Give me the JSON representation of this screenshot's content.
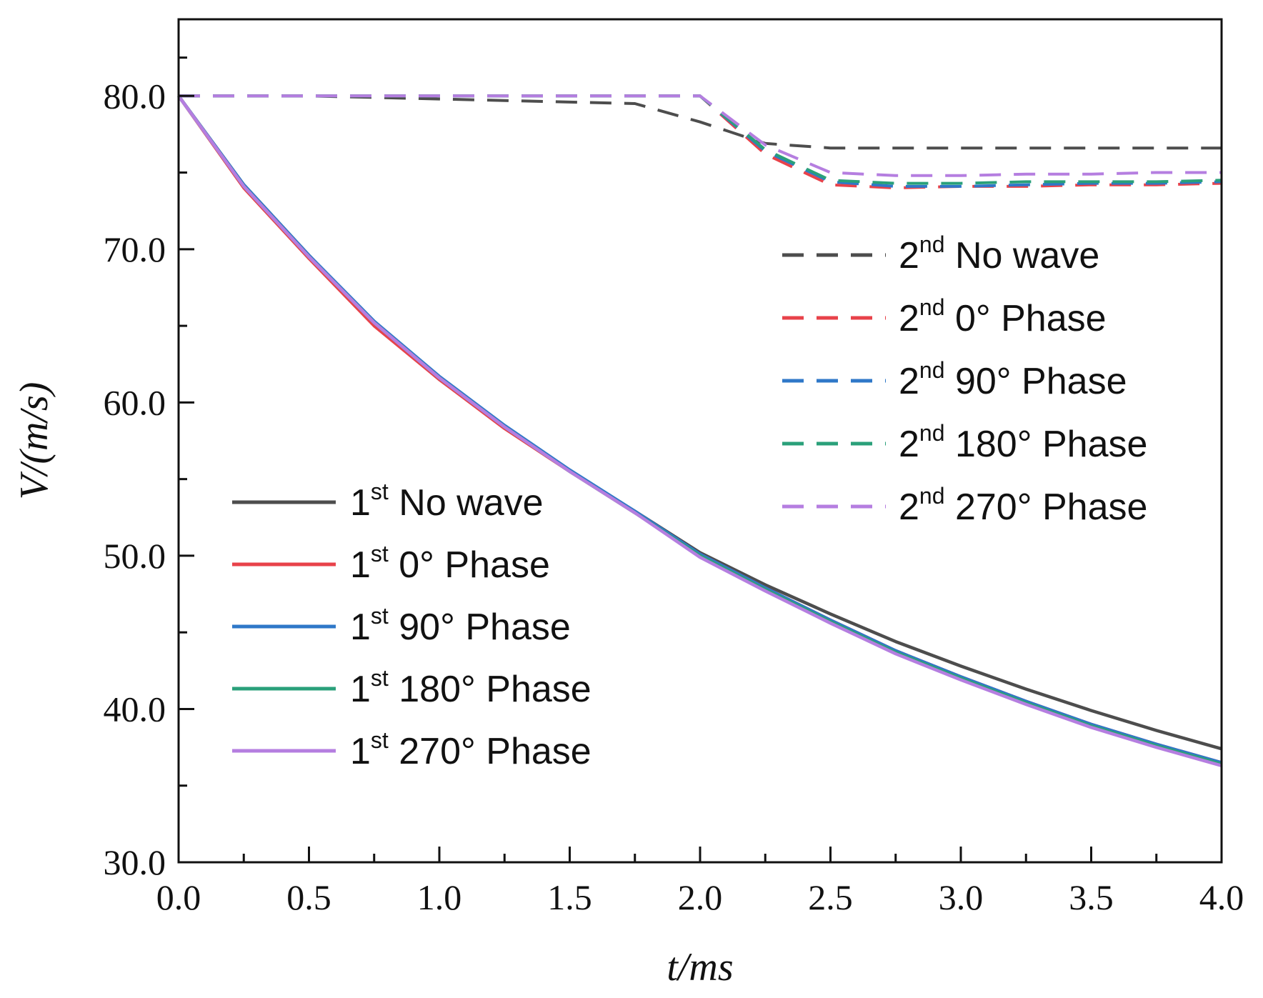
{
  "chart_data": {
    "type": "line",
    "xlabel": "t/ms",
    "ylabel": "V/(m/s)",
    "xlim": [
      0,
      4
    ],
    "ylim": [
      30,
      85
    ],
    "x_ticks": [
      "0.0",
      "0.5",
      "1.0",
      "1.5",
      "2.0",
      "2.5",
      "3.0",
      "3.5",
      "4.0"
    ],
    "y_ticks": [
      "30.0",
      "40.0",
      "50.0",
      "60.0",
      "70.0",
      "80.0"
    ],
    "grid": false,
    "x": [
      0,
      0.25,
      0.5,
      0.75,
      1.0,
      1.25,
      1.5,
      1.75,
      2.0,
      2.25,
      2.5,
      2.75,
      3.0,
      3.25,
      3.5,
      3.75,
      4.0
    ],
    "series": [
      {
        "name": "1st No wave",
        "legend_prefix": "1",
        "legend_sup": "st",
        "legend_label": "No wave",
        "color": "#4d4d4d",
        "dash": "solid",
        "values": [
          80.0,
          74.2,
          69.6,
          65.1,
          61.5,
          58.4,
          55.5,
          52.9,
          50.2,
          48.1,
          46.2,
          44.4,
          42.8,
          41.3,
          39.9,
          38.6,
          37.4
        ]
      },
      {
        "name": "1st 0° Phase",
        "legend_prefix": "1",
        "legend_sup": "st",
        "legend_label": "0° Phase",
        "color": "#e8424a",
        "dash": "solid",
        "values": [
          80.0,
          74.0,
          69.4,
          65.0,
          61.5,
          58.3,
          55.5,
          52.8,
          50.1,
          47.9,
          45.8,
          43.8,
          42.1,
          40.5,
          39.0,
          37.7,
          36.5
        ]
      },
      {
        "name": "1st 90° Phase",
        "legend_prefix": "1",
        "legend_sup": "st",
        "legend_label": "90° Phase",
        "color": "#2f78c8",
        "dash": "solid",
        "values": [
          80.0,
          74.2,
          69.6,
          65.3,
          61.7,
          58.5,
          55.6,
          52.9,
          50.1,
          47.9,
          45.8,
          43.8,
          42.1,
          40.5,
          39.0,
          37.7,
          36.5
        ]
      },
      {
        "name": "1st 180° Phase",
        "legend_prefix": "1",
        "legend_sup": "st",
        "legend_label": "180° Phase",
        "color": "#2aa07a",
        "dash": "solid",
        "values": [
          80.0,
          74.1,
          69.5,
          65.2,
          61.6,
          58.4,
          55.5,
          52.8,
          50.0,
          47.8,
          45.7,
          43.7,
          42.0,
          40.4,
          38.9,
          37.6,
          36.4
        ]
      },
      {
        "name": "1st 270° Phase",
        "legend_prefix": "1",
        "legend_sup": "st",
        "legend_label": "270° Phase",
        "color": "#b57ee0",
        "dash": "solid",
        "values": [
          80.0,
          74.1,
          69.5,
          65.2,
          61.6,
          58.4,
          55.5,
          52.8,
          49.9,
          47.7,
          45.6,
          43.6,
          41.9,
          40.3,
          38.8,
          37.5,
          36.3
        ]
      },
      {
        "name": "2nd No wave",
        "legend_prefix": "2",
        "legend_sup": "nd",
        "legend_label": "No wave",
        "color": "#4d4d4d",
        "dash": "dashed",
        "values": [
          80.0,
          80.0,
          80.0,
          79.9,
          79.8,
          79.7,
          79.6,
          79.5,
          78.3,
          76.9,
          76.6,
          76.6,
          76.6,
          76.6,
          76.6,
          76.6,
          76.6
        ]
      },
      {
        "name": "2nd 0° Phase",
        "legend_prefix": "2",
        "legend_sup": "nd",
        "legend_label": "0° Phase",
        "color": "#e8424a",
        "dash": "dashed",
        "values": [
          80.0,
          80.0,
          80.0,
          80.0,
          80.0,
          80.0,
          80.0,
          80.0,
          80.0,
          76.2,
          74.2,
          74.0,
          74.1,
          74.1,
          74.2,
          74.2,
          74.3
        ]
      },
      {
        "name": "2nd 90° Phase",
        "legend_prefix": "2",
        "legend_sup": "nd",
        "legend_label": "90° Phase",
        "color": "#2f78c8",
        "dash": "dashed",
        "values": [
          80.0,
          80.0,
          80.0,
          80.0,
          80.0,
          80.0,
          80.0,
          80.0,
          80.0,
          76.4,
          74.4,
          74.1,
          74.1,
          74.2,
          74.3,
          74.3,
          74.4
        ]
      },
      {
        "name": "2nd 180° Phase",
        "legend_prefix": "2",
        "legend_sup": "nd",
        "legend_label": "180° Phase",
        "color": "#2aa07a",
        "dash": "dashed",
        "values": [
          80.0,
          80.0,
          80.0,
          80.0,
          80.0,
          80.0,
          80.0,
          80.0,
          80.0,
          76.5,
          74.5,
          74.3,
          74.3,
          74.4,
          74.4,
          74.4,
          74.5
        ]
      },
      {
        "name": "2nd 270° Phase",
        "legend_prefix": "2",
        "legend_sup": "nd",
        "legend_label": "270° Phase",
        "color": "#b57ee0",
        "dash": "dashed",
        "values": [
          80.0,
          80.0,
          80.0,
          80.0,
          80.0,
          80.0,
          80.0,
          80.0,
          80.0,
          76.8,
          75.0,
          74.8,
          74.8,
          74.9,
          74.9,
          75.0,
          75.0
        ]
      }
    ],
    "legends": [
      {
        "placement": "bottom-left",
        "series": [
          "1st No wave",
          "1st 0° Phase",
          "1st 90° Phase",
          "1st 180° Phase",
          "1st 270° Phase"
        ]
      },
      {
        "placement": "top-right",
        "series": [
          "2nd No wave",
          "2nd 0° Phase",
          "2nd 90° Phase",
          "2nd 180° Phase",
          "2nd 270° Phase"
        ]
      }
    ]
  }
}
